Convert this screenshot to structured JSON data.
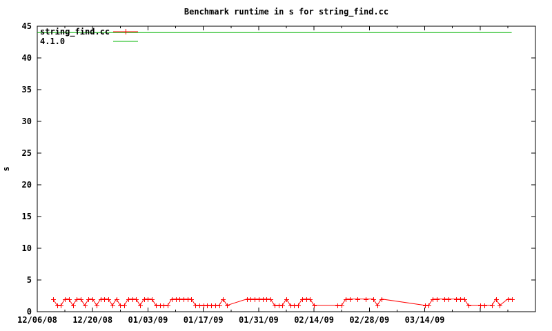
{
  "window": {
    "background": "#ffffff"
  },
  "chart_data": {
    "type": "line",
    "title": "Benchmark runtime in s for string_find.cc",
    "xlabel": "",
    "ylabel": "s",
    "ylim": [
      0,
      45
    ],
    "yticks": [
      0,
      5,
      10,
      15,
      20,
      25,
      30,
      35,
      40,
      45
    ],
    "x_start_date": "12/06/08",
    "x_end_date": "04/11/09",
    "x_major_tick_days": 14,
    "x_minor_tick_days": 7,
    "xtick_labels": [
      "12/06/08",
      "12/20/08",
      "01/03/09",
      "01/17/09",
      "01/31/09",
      "02/14/09",
      "02/28/09",
      "03/14/09"
    ],
    "grid": false,
    "legend_position": "top-left-inside",
    "colors": {
      "axis": "#000000",
      "red_series": "#ff0000",
      "green_series": "#00b400"
    },
    "series": [
      {
        "name": "string_find.cc",
        "color": "#ff0000",
        "marker": "plus",
        "points": [
          [
            "12/10/08",
            2
          ],
          [
            "12/11/08",
            1
          ],
          [
            "12/12/08",
            1
          ],
          [
            "12/13/08",
            2
          ],
          [
            "12/14/08",
            2
          ],
          [
            "12/15/08",
            1
          ],
          [
            "12/16/08",
            2
          ],
          [
            "12/17/08",
            2
          ],
          [
            "12/18/08",
            1
          ],
          [
            "12/19/08",
            2
          ],
          [
            "12/20/08",
            2
          ],
          [
            "12/21/08",
            1
          ],
          [
            "12/22/08",
            2
          ],
          [
            "12/23/08",
            2
          ],
          [
            "12/24/08",
            2
          ],
          [
            "12/25/08",
            1
          ],
          [
            "12/26/08",
            2
          ],
          [
            "12/27/08",
            1
          ],
          [
            "12/28/08",
            1
          ],
          [
            "12/29/08",
            2
          ],
          [
            "12/30/08",
            2
          ],
          [
            "12/31/08",
            2
          ],
          [
            "01/01/09",
            1
          ],
          [
            "01/02/09",
            2
          ],
          [
            "01/03/09",
            2
          ],
          [
            "01/04/09",
            2
          ],
          [
            "01/05/09",
            1
          ],
          [
            "01/06/09",
            1
          ],
          [
            "01/07/09",
            1
          ],
          [
            "01/08/09",
            1
          ],
          [
            "01/09/09",
            2
          ],
          [
            "01/10/09",
            2
          ],
          [
            "01/11/09",
            2
          ],
          [
            "01/12/09",
            2
          ],
          [
            "01/13/09",
            2
          ],
          [
            "01/14/09",
            2
          ],
          [
            "01/15/09",
            1
          ],
          [
            "01/16/09",
            1
          ],
          [
            "01/17/09",
            1
          ],
          [
            "01/18/09",
            1
          ],
          [
            "01/19/09",
            1
          ],
          [
            "01/20/09",
            1
          ],
          [
            "01/21/09",
            1
          ],
          [
            "01/22/09",
            2
          ],
          [
            "01/23/09",
            1
          ],
          [
            "01/28/09",
            2
          ],
          [
            "01/29/09",
            2
          ],
          [
            "01/30/09",
            2
          ],
          [
            "01/31/09",
            2
          ],
          [
            "02/01/09",
            2
          ],
          [
            "02/02/09",
            2
          ],
          [
            "02/03/09",
            2
          ],
          [
            "02/04/09",
            1
          ],
          [
            "02/05/09",
            1
          ],
          [
            "02/06/09",
            1
          ],
          [
            "02/07/09",
            2
          ],
          [
            "02/08/09",
            1
          ],
          [
            "02/09/09",
            1
          ],
          [
            "02/10/09",
            1
          ],
          [
            "02/11/09",
            2
          ],
          [
            "02/12/09",
            2
          ],
          [
            "02/13/09",
            2
          ],
          [
            "02/14/09",
            1
          ],
          [
            "02/20/09",
            1
          ],
          [
            "02/21/09",
            1
          ],
          [
            "02/22/09",
            2
          ],
          [
            "02/23/09",
            2
          ],
          [
            "02/25/09",
            2
          ],
          [
            "02/27/09",
            2
          ],
          [
            "03/01/09",
            2
          ],
          [
            "03/02/09",
            1
          ],
          [
            "03/03/09",
            2
          ],
          [
            "03/14/09",
            1
          ],
          [
            "03/15/09",
            1
          ],
          [
            "03/16/09",
            2
          ],
          [
            "03/17/09",
            2
          ],
          [
            "03/19/09",
            2
          ],
          [
            "03/20/09",
            2
          ],
          [
            "03/22/09",
            2
          ],
          [
            "03/23/09",
            2
          ],
          [
            "03/24/09",
            2
          ],
          [
            "03/25/09",
            1
          ],
          [
            "03/28/09",
            1
          ],
          [
            "03/29/09",
            1
          ],
          [
            "03/31/09",
            1
          ],
          [
            "04/01/09",
            2
          ],
          [
            "04/02/09",
            1
          ],
          [
            "04/04/09",
            2
          ],
          [
            "04/05/09",
            2
          ]
        ]
      },
      {
        "name": "4.1.0",
        "color": "#00b400",
        "marker": "none",
        "points": [
          [
            "12/06/08",
            44
          ],
          [
            "04/05/09",
            44
          ]
        ]
      }
    ]
  }
}
